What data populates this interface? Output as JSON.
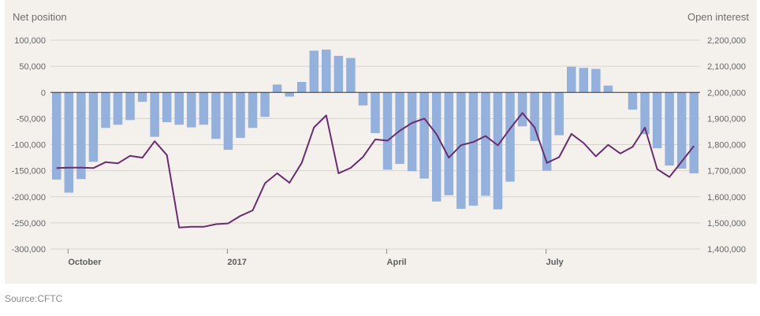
{
  "source": "Source:CFTC",
  "chart_data": {
    "type": "bar",
    "y_left_label": "Net position",
    "y_right_label": "Open interest",
    "left_ticks": [
      "100,000",
      "50,000",
      "0",
      "-50,000",
      "-100,000",
      "-150,000",
      "-200,000",
      "-250,000",
      "-300,000"
    ],
    "left_tick_values": [
      100000,
      50000,
      0,
      -50000,
      -100000,
      -150000,
      -200000,
      -250000,
      -300000
    ],
    "right_ticks": [
      "2,200,000",
      "2,100,000",
      "2,000,000",
      "1,900,000",
      "1,800,000",
      "1,700,000",
      "1,600,000",
      "1,500,000",
      "1,400,000"
    ],
    "right_tick_values": [
      2200000,
      2100000,
      2000000,
      1900000,
      1800000,
      1700000,
      1600000,
      1500000,
      1400000
    ],
    "left_ylim": [
      -300000,
      100000
    ],
    "right_ylim": [
      1400000,
      2200000
    ],
    "x_ticks": [
      {
        "label": "October",
        "index": 1
      },
      {
        "label": "2017",
        "index": 14
      },
      {
        "label": "April",
        "index": 27
      },
      {
        "label": "July",
        "index": 40
      }
    ],
    "colors": {
      "bars": "#93b1dc",
      "line": "#6a2c70",
      "zero_line": "#333333",
      "grid": "#d6d3cf"
    },
    "series": [
      {
        "kind": "bar",
        "axis": "left",
        "values": [
          -167000,
          -192000,
          -166000,
          -133000,
          -68000,
          -62000,
          -53000,
          -18000,
          -85000,
          -57000,
          -62000,
          -67000,
          -62000,
          -89000,
          -110000,
          -87000,
          -68000,
          -47000,
          15000,
          -8000,
          20000,
          80000,
          82000,
          70000,
          66000,
          -25000,
          -78000,
          -148000,
          -137000,
          -151000,
          -165000,
          -209000,
          -197000,
          -223000,
          -217000,
          -198000,
          -224000,
          -171000,
          -65000,
          -93000,
          -150000,
          -82000,
          49000,
          47000,
          45000,
          13000,
          0,
          -33000,
          -80000,
          -107000,
          -140000,
          -146000,
          -155000
        ]
      },
      {
        "kind": "line",
        "axis": "right",
        "values": [
          1710000,
          1712000,
          1712000,
          1710000,
          1733000,
          1728000,
          1757000,
          1750000,
          1813000,
          1760000,
          1482000,
          1485000,
          1485000,
          1495000,
          1498000,
          1527000,
          1548000,
          1652000,
          1690000,
          1654000,
          1730000,
          1866000,
          1912000,
          1690000,
          1711000,
          1753000,
          1820000,
          1815000,
          1853000,
          1883000,
          1900000,
          1840000,
          1750000,
          1798000,
          1810000,
          1833000,
          1797000,
          1861000,
          1921000,
          1866000,
          1730000,
          1752000,
          1841000,
          1806000,
          1755000,
          1799000,
          1766000,
          1792000,
          1865000,
          1706000,
          1676000,
          1735000,
          1795000
        ]
      }
    ]
  }
}
